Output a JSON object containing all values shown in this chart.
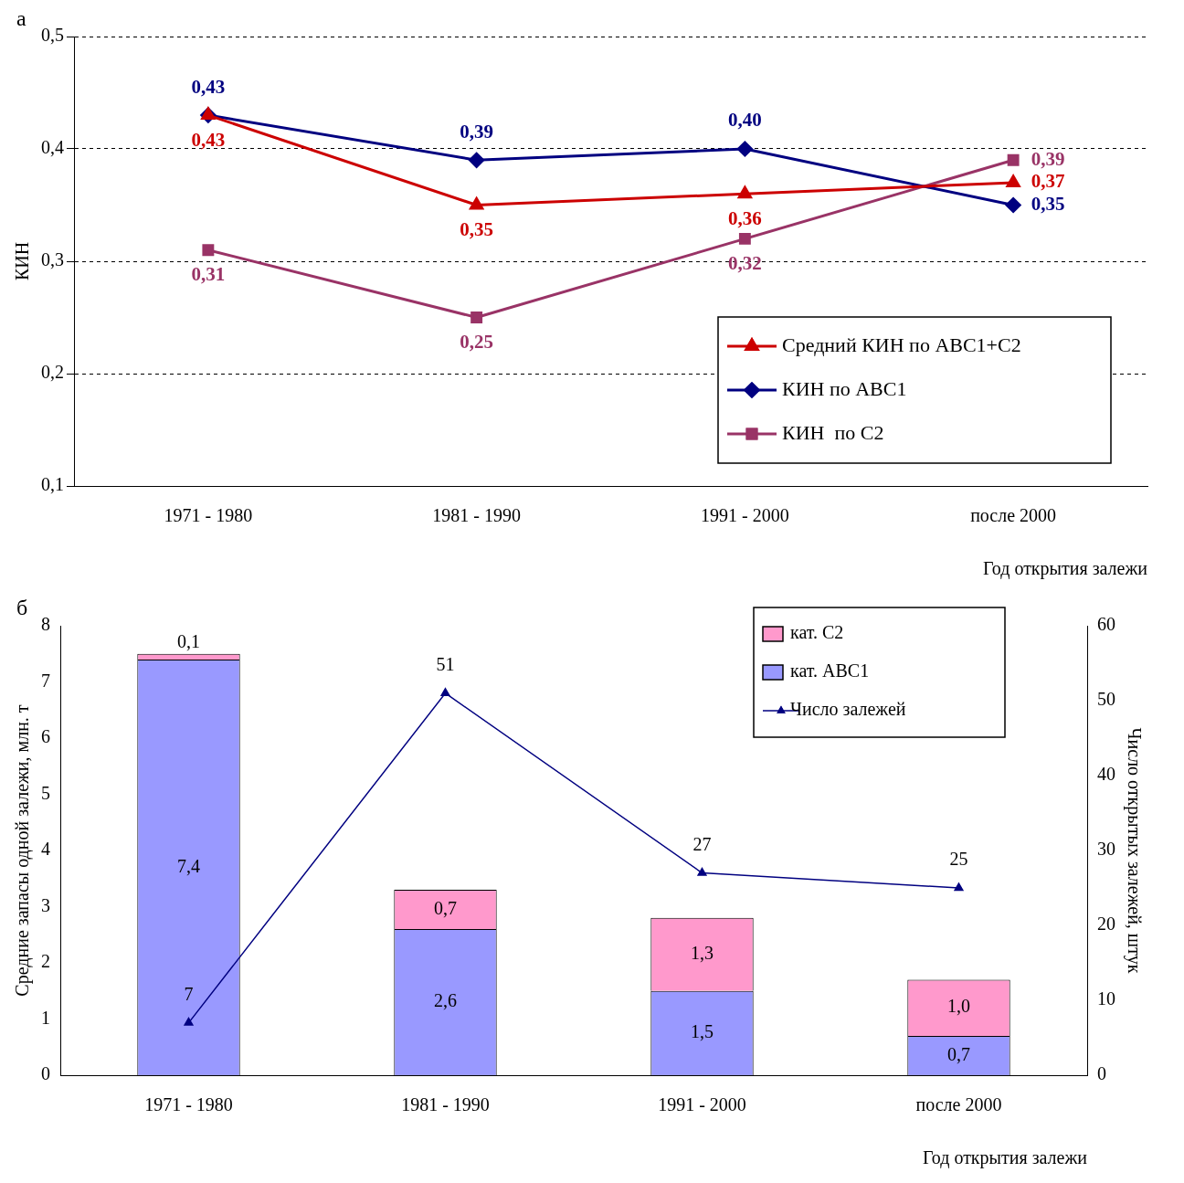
{
  "chart_data": [
    {
      "type": "line",
      "title": "а",
      "ylabel": "КИН",
      "xlabel": "Год открытия залежи",
      "categories": [
        "1971 - 1980",
        "1981 - 1990",
        "1991 - 2000",
        "после 2000"
      ],
      "ylim": [
        0.1,
        0.5
      ],
      "yticks": [
        {
          "value": 0.1,
          "label": "0,1"
        },
        {
          "value": 0.2,
          "label": "0,2"
        },
        {
          "value": 0.3,
          "label": "0,3"
        },
        {
          "value": 0.4,
          "label": "0,4"
        },
        {
          "value": 0.5,
          "label": "0,5"
        }
      ],
      "grid": "y",
      "legend": "bottom right",
      "line_style": "solid",
      "series": [
        {
          "name": "Средний КИН по АВС1+С2",
          "color": "#cc0000",
          "marker": "triangle",
          "values": [
            0.43,
            0.35,
            0.36,
            0.37
          ],
          "value_labels": [
            "0,43",
            "0,35",
            "0,36",
            "0,37"
          ]
        },
        {
          "name": "КИН по АВС1",
          "color": "#000080",
          "marker": "diamond",
          "values": [
            0.43,
            0.39,
            0.4,
            0.35
          ],
          "value_labels": [
            "0,43",
            "0,39",
            "0,40",
            "0,35"
          ]
        },
        {
          "name": "КИН  по С2",
          "color": "#993366",
          "marker": "square",
          "values": [
            0.31,
            0.25,
            0.32,
            0.39
          ],
          "value_labels": [
            "0,31",
            "0,25",
            "0,32",
            "0,39"
          ]
        }
      ]
    },
    {
      "type": "bar",
      "title": "б",
      "stacked": true,
      "ylabel": "Средние запасы одной залежи, млн. т",
      "y2label": "Число открытых залежей, штук",
      "xlabel": "Год открытия залежи",
      "categories": [
        "1971 - 1980",
        "1981 - 1990",
        "1991 - 2000",
        "после 2000"
      ],
      "ylim": [
        0,
        8
      ],
      "yticks": [
        0,
        1,
        2,
        3,
        4,
        5,
        6,
        7,
        8
      ],
      "y2lim": [
        0,
        60
      ],
      "y2ticks": [
        0,
        10,
        20,
        30,
        40,
        50,
        60
      ],
      "grid": false,
      "legend": "top right",
      "series": [
        {
          "name": "кат. АВС1",
          "color": "#9999ff",
          "values": [
            7.4,
            2.6,
            1.5,
            0.7
          ],
          "value_labels": [
            "7,4",
            "2,6",
            "1,5",
            "0,7"
          ]
        },
        {
          "name": "кат. С2",
          "color": "#ff99cc",
          "values": [
            0.1,
            0.7,
            1.3,
            1.0
          ],
          "value_labels": [
            "0,1",
            "0,7",
            "1,3",
            "1,0"
          ]
        },
        {
          "name": "Число залежей",
          "type": "line",
          "axis": "y2",
          "color": "#000080",
          "marker": "triangle",
          "values": [
            7,
            51,
            27,
            25
          ],
          "value_labels": [
            "7",
            "51",
            "27",
            "25"
          ]
        }
      ]
    }
  ]
}
